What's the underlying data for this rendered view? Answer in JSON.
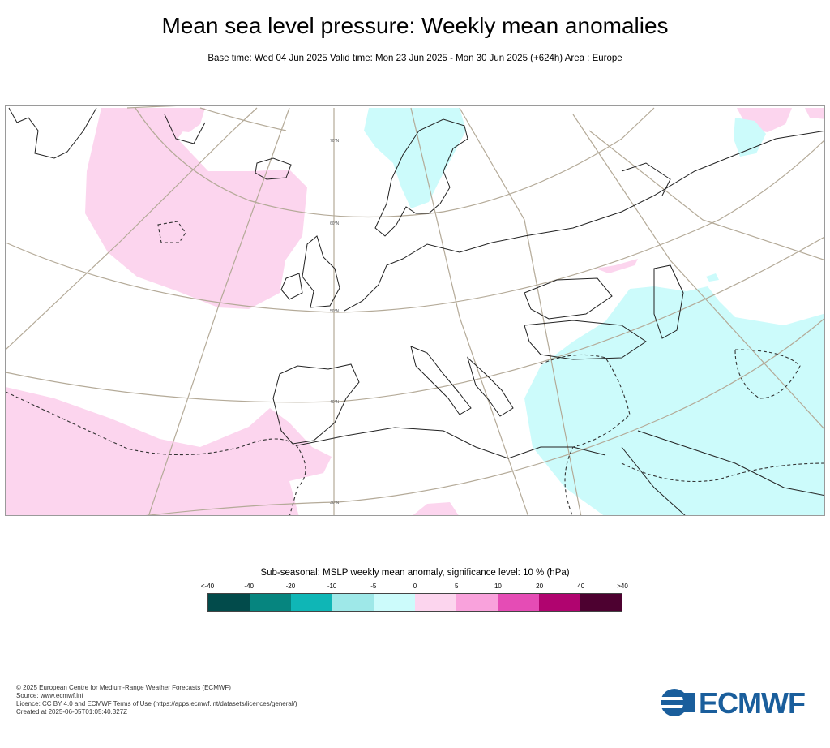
{
  "header": {
    "title": "Mean sea level pressure: Weekly mean anomalies",
    "subtitle": "Base time: Wed 04 Jun 2025 Valid time: Mon 23 Jun 2025 - Mon 30 Jun 2025 (+624h) Area : Europe"
  },
  "map": {
    "region": "Europe",
    "latitude_labels": [
      "70°N",
      "60°N",
      "50°N",
      "40°N",
      "30°N"
    ],
    "anomaly_colors": {
      "positive_weak": "#fcd5ee",
      "negative_weak": "#ccfbfb"
    }
  },
  "legend": {
    "title": "Sub-seasonal: MSLP weekly mean anomaly, significance level: 10 % (hPa)",
    "ticks": [
      "<-40",
      "-40",
      "-20",
      "-10",
      "-5",
      "0",
      "5",
      "10",
      "20",
      "40",
      ">40"
    ],
    "colors": [
      "#024b4b",
      "#06857f",
      "#0fb6b6",
      "#9ee8e8",
      "#ccfbfb",
      "#fcd5ee",
      "#f9a2dc",
      "#e54cb5",
      "#b0046f",
      "#4d0130"
    ]
  },
  "footer": {
    "lines": [
      "© 2025 European Centre for Medium-Range Weather Forecasts (ECMWF)",
      "Source: www.ecmwf.int",
      "Licence: CC BY 4.0 and ECMWF Terms of Use (https://apps.ecmwf.int/datasets/licences/general/)",
      "Created at 2025-06-05T01:05:40.327Z"
    ]
  },
  "logo": {
    "text": "ECMWF",
    "color": "#1a5e9c"
  }
}
